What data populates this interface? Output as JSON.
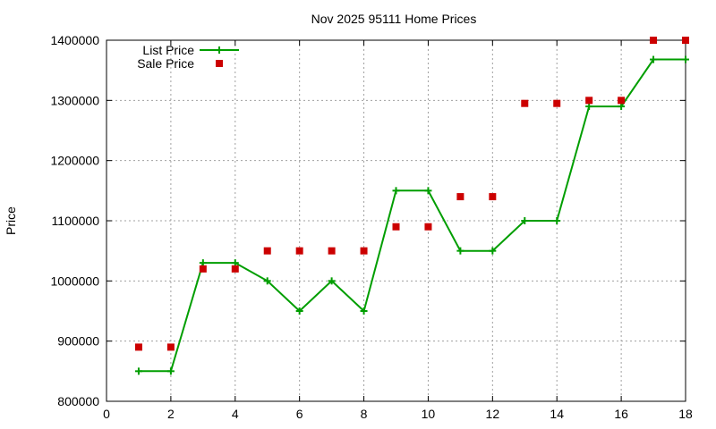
{
  "chart_data": {
    "type": "line",
    "title": "Nov 2025 95111 Home Prices",
    "xlabel": "",
    "ylabel": "Price",
    "xlim": [
      0,
      18
    ],
    "ylim": [
      800000,
      1400000
    ],
    "x_ticks": [
      "0",
      "2",
      "4",
      "6",
      "8",
      "10",
      "12",
      "14",
      "16",
      "18"
    ],
    "y_ticks": [
      "800000",
      "900000",
      "1000000",
      "1100000",
      "1200000",
      "1300000",
      "1400000"
    ],
    "grid": true,
    "legend_position": "top-left",
    "series": [
      {
        "name": "List Price",
        "style": "line-with-plus-markers",
        "color": "#009e00",
        "x": [
          1,
          2,
          3,
          4,
          5,
          6,
          7,
          8,
          9,
          10,
          11,
          12,
          13,
          14,
          15,
          16,
          17,
          18
        ],
        "values": [
          850000,
          850000,
          1030000,
          1030000,
          1000000,
          950000,
          1000000,
          950000,
          1150000,
          1150000,
          1050000,
          1050000,
          1100000,
          1100000,
          1290000,
          1290000,
          1368000,
          1368000
        ]
      },
      {
        "name": "Sale Price",
        "style": "square-points",
        "color": "#cc0000",
        "x": [
          1,
          2,
          3,
          4,
          5,
          6,
          7,
          8,
          9,
          10,
          11,
          12,
          13,
          14,
          15,
          16,
          17,
          18
        ],
        "values": [
          890000,
          890000,
          1020000,
          1020000,
          1050000,
          1050000,
          1050000,
          1050000,
          1090000,
          1090000,
          1140000,
          1140000,
          1295000,
          1295000,
          1300000,
          1300000,
          1400000,
          1400000
        ]
      }
    ]
  }
}
